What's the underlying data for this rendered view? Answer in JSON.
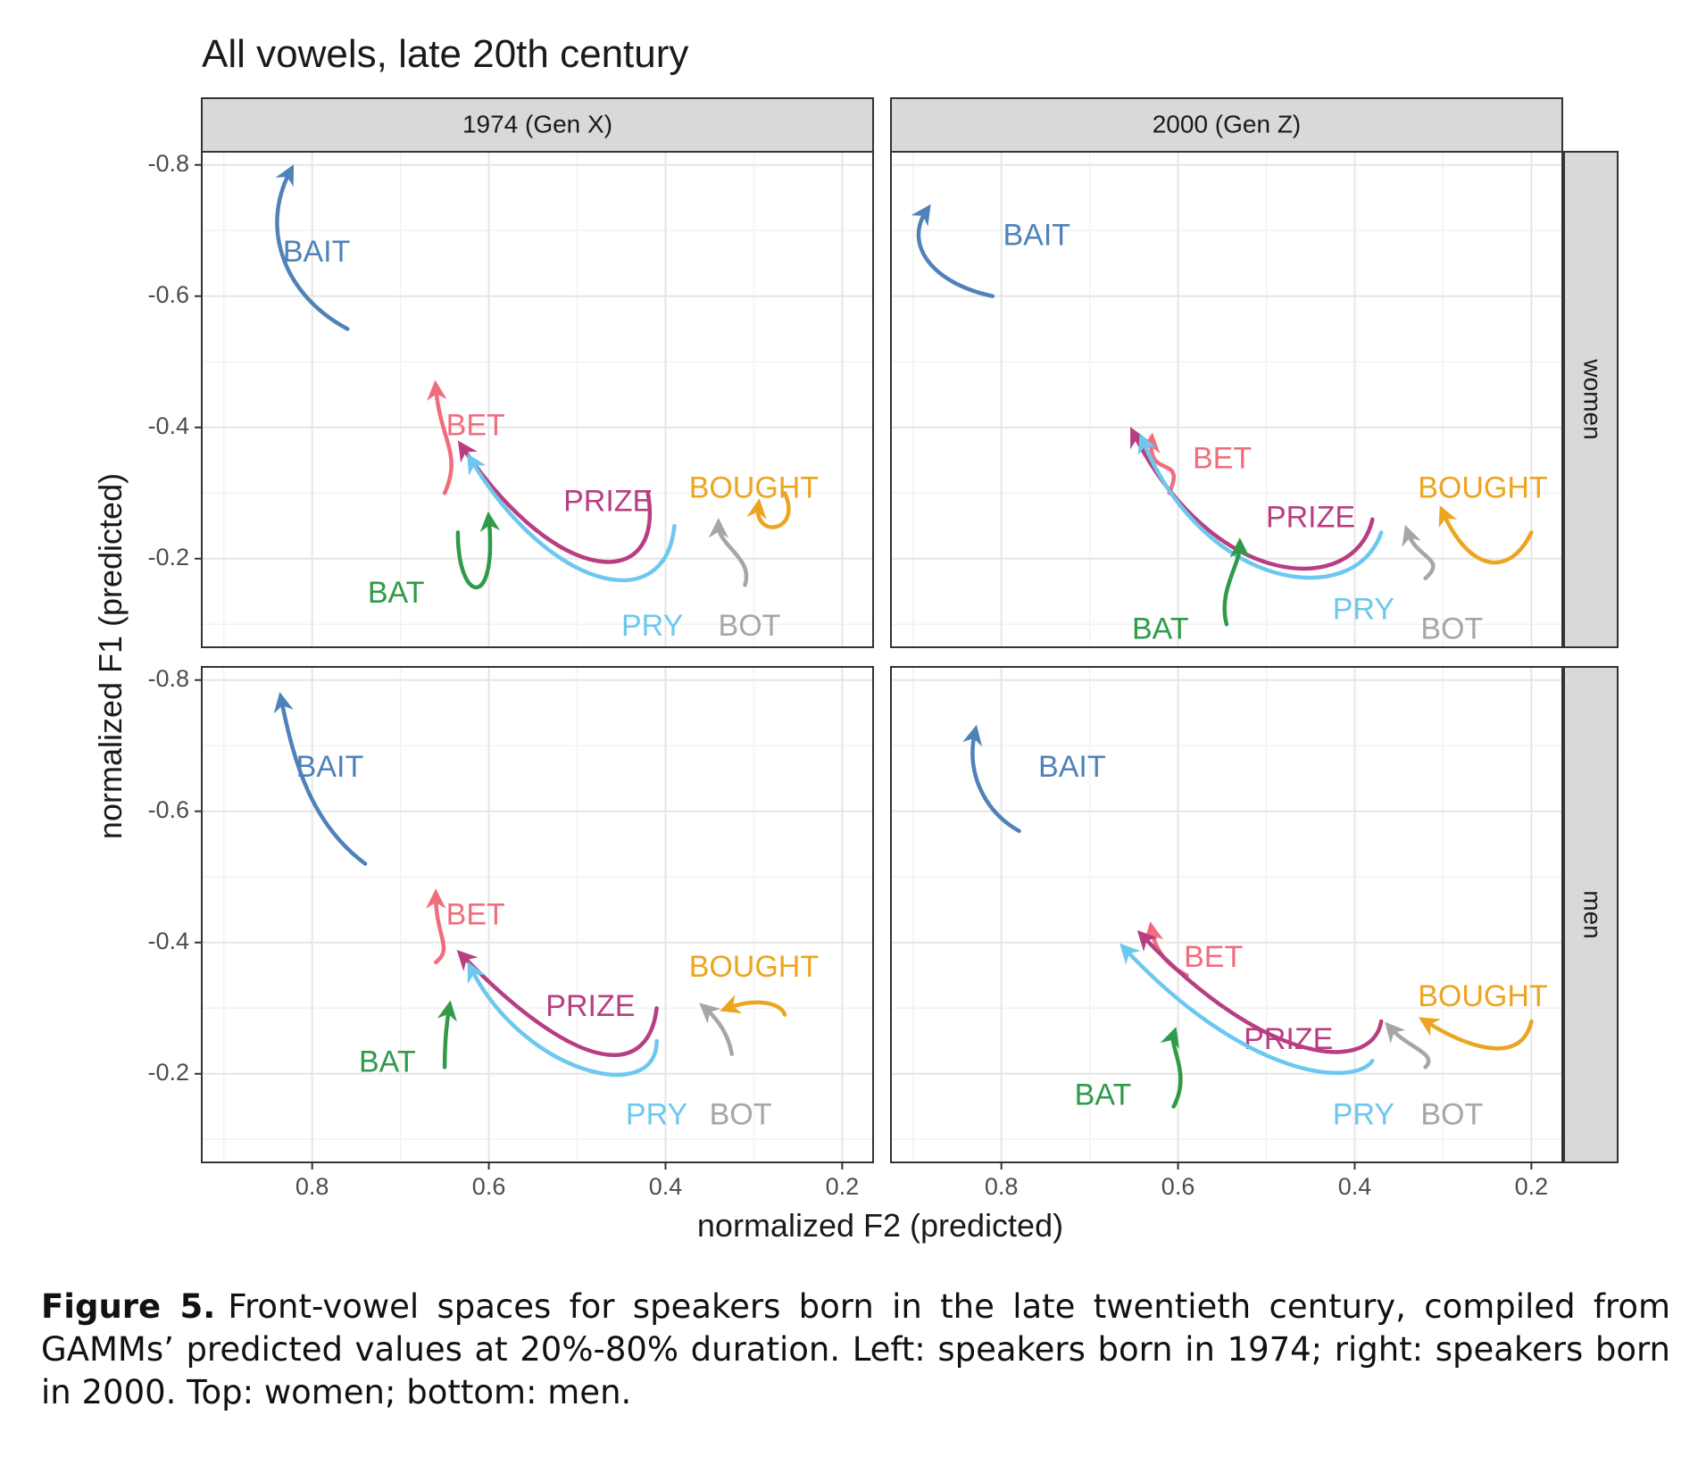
{
  "chart_data": {
    "type": "line",
    "title": "All vowels, late 20th century",
    "xlabel": "normalized F2 (predicted)",
    "ylabel": "normalized F1 (predicted)",
    "x_reversed": true,
    "y_reversed": true,
    "xlim": [
      0.925,
      0.165
    ],
    "ylim": [
      -0.82,
      -0.065
    ],
    "x_ticks": [
      0.8,
      0.6,
      0.4,
      0.2
    ],
    "x_tick_labels": [
      "0.8",
      "0.6",
      "0.4",
      "0.2"
    ],
    "y_ticks": [
      -0.8,
      -0.6,
      -0.4,
      -0.2
    ],
    "y_tick_labels": [
      "-0.8",
      "-0.6",
      "-0.4",
      "-0.2"
    ],
    "grid": true,
    "legend": "none",
    "colors": {
      "BAIT": "#4f82b8",
      "BET": "#f06d7d",
      "PRIZE": "#b83e82",
      "PRY": "#6cc8ee",
      "BAT": "#2f9a48",
      "BOT": "#a6a6a6",
      "BOUGHT": "#eba521"
    },
    "columns": [
      "1974 (Gen X)",
      "2000 (Gen Z)"
    ],
    "rows": [
      "women",
      "men"
    ],
    "panels": [
      {
        "col": 0,
        "row": 0,
        "series": [
          {
            "name": "BAIT",
            "points": [
              [
                0.76,
                -0.55
              ],
              [
                0.83,
                -0.6
              ],
              [
                0.86,
                -0.7
              ],
              [
                0.825,
                -0.79
              ]
            ],
            "label_at": [
              0.795,
              -0.665
            ]
          },
          {
            "name": "BET",
            "points": [
              [
                0.65,
                -0.3
              ],
              [
                0.63,
                -0.36
              ],
              [
                0.655,
                -0.38
              ],
              [
                0.66,
                -0.46
              ]
            ],
            "label_at": [
              0.615,
              -0.4
            ]
          },
          {
            "name": "PRIZE",
            "points": [
              [
                0.42,
                -0.3
              ],
              [
                0.4,
                -0.15
              ],
              [
                0.52,
                -0.15
              ],
              [
                0.63,
                -0.37
              ]
            ],
            "label_at": [
              0.465,
              -0.285
            ]
          },
          {
            "name": "PRY",
            "points": [
              [
                0.39,
                -0.25
              ],
              [
                0.4,
                -0.11
              ],
              [
                0.53,
                -0.15
              ],
              [
                0.62,
                -0.35
              ]
            ],
            "label_at": [
              0.415,
              -0.095
            ]
          },
          {
            "name": "BAT",
            "points": [
              [
                0.635,
                -0.24
              ],
              [
                0.635,
                -0.13
              ],
              [
                0.59,
                -0.12
              ],
              [
                0.6,
                -0.26
              ]
            ],
            "label_at": [
              0.705,
              -0.145
            ]
          },
          {
            "name": "BOT",
            "points": [
              [
                0.31,
                -0.16
              ],
              [
                0.3,
                -0.2
              ],
              [
                0.34,
                -0.22
              ],
              [
                0.34,
                -0.25
              ]
            ],
            "label_at": [
              0.305,
              -0.095
            ]
          },
          {
            "name": "BOUGHT",
            "points": [
              [
                0.265,
                -0.3
              ],
              [
                0.245,
                -0.24
              ],
              [
                0.3,
                -0.23
              ],
              [
                0.295,
                -0.28
              ]
            ],
            "label_at": [
              0.3,
              -0.305
            ]
          }
        ]
      },
      {
        "col": 1,
        "row": 0,
        "series": [
          {
            "name": "BAIT",
            "points": [
              [
                0.81,
                -0.6
              ],
              [
                0.88,
                -0.62
              ],
              [
                0.91,
                -0.68
              ],
              [
                0.885,
                -0.73
              ]
            ],
            "label_at": [
              0.76,
              -0.69
            ]
          },
          {
            "name": "BET",
            "points": [
              [
                0.61,
                -0.3
              ],
              [
                0.59,
                -0.36
              ],
              [
                0.635,
                -0.32
              ],
              [
                0.63,
                -0.38
              ]
            ],
            "label_at": [
              0.55,
              -0.35
            ]
          },
          {
            "name": "PRIZE",
            "points": [
              [
                0.38,
                -0.26
              ],
              [
                0.4,
                -0.14
              ],
              [
                0.56,
                -0.15
              ],
              [
                0.65,
                -0.39
              ]
            ],
            "label_at": [
              0.45,
              -0.26
            ]
          },
          {
            "name": "PRY",
            "points": [
              [
                0.37,
                -0.24
              ],
              [
                0.4,
                -0.12
              ],
              [
                0.57,
                -0.15
              ],
              [
                0.64,
                -0.38
              ]
            ],
            "label_at": [
              0.39,
              -0.12
            ]
          },
          {
            "name": "BAT",
            "points": [
              [
                0.545,
                -0.1
              ],
              [
                0.555,
                -0.15
              ],
              [
                0.53,
                -0.19
              ],
              [
                0.53,
                -0.22
              ]
            ],
            "label_at": [
              0.62,
              -0.09
            ]
          },
          {
            "name": "BOT",
            "points": [
              [
                0.32,
                -0.17
              ],
              [
                0.295,
                -0.2
              ],
              [
                0.33,
                -0.2
              ],
              [
                0.34,
                -0.24
              ]
            ],
            "label_at": [
              0.29,
              -0.09
            ]
          },
          {
            "name": "BOUGHT",
            "points": [
              [
                0.2,
                -0.24
              ],
              [
                0.225,
                -0.17
              ],
              [
                0.27,
                -0.18
              ],
              [
                0.3,
                -0.27
              ]
            ],
            "label_at": [
              0.255,
              -0.305
            ]
          }
        ]
      },
      {
        "col": 0,
        "row": 1,
        "series": [
          {
            "name": "BAIT",
            "points": [
              [
                0.74,
                -0.52
              ],
              [
                0.8,
                -0.58
              ],
              [
                0.82,
                -0.67
              ],
              [
                0.835,
                -0.77
              ]
            ],
            "label_at": [
              0.78,
              -0.665
            ]
          },
          {
            "name": "BET",
            "points": [
              [
                0.66,
                -0.37
              ],
              [
                0.64,
                -0.39
              ],
              [
                0.66,
                -0.41
              ],
              [
                0.66,
                -0.47
              ]
            ],
            "label_at": [
              0.615,
              -0.44
            ]
          },
          {
            "name": "PRIZE",
            "points": [
              [
                0.41,
                -0.3
              ],
              [
                0.42,
                -0.19
              ],
              [
                0.5,
                -0.2
              ],
              [
                0.63,
                -0.38
              ]
            ],
            "label_at": [
              0.485,
              -0.3
            ]
          },
          {
            "name": "PRY",
            "points": [
              [
                0.41,
                -0.25
              ],
              [
                0.41,
                -0.15
              ],
              [
                0.56,
                -0.2
              ],
              [
                0.62,
                -0.36
              ]
            ],
            "label_at": [
              0.41,
              -0.135
            ]
          },
          {
            "name": "BAT",
            "points": [
              [
                0.65,
                -0.21
              ],
              [
                0.65,
                -0.26
              ],
              [
                0.645,
                -0.3
              ]
            ],
            "label_at": [
              0.715,
              -0.215
            ]
          },
          {
            "name": "BOT",
            "points": [
              [
                0.325,
                -0.23
              ],
              [
                0.33,
                -0.27
              ],
              [
                0.355,
                -0.3
              ]
            ],
            "label_at": [
              0.315,
              -0.135
            ]
          },
          {
            "name": "BOUGHT",
            "points": [
              [
                0.265,
                -0.29
              ],
              [
                0.27,
                -0.31
              ],
              [
                0.3,
                -0.315
              ],
              [
                0.33,
                -0.3
              ]
            ],
            "label_at": [
              0.3,
              -0.36
            ]
          }
        ]
      },
      {
        "col": 1,
        "row": 1,
        "series": [
          {
            "name": "BAIT",
            "points": [
              [
                0.78,
                -0.57
              ],
              [
                0.82,
                -0.6
              ],
              [
                0.84,
                -0.66
              ],
              [
                0.83,
                -0.72
              ]
            ],
            "label_at": [
              0.72,
              -0.665
            ]
          },
          {
            "name": "BET",
            "points": [
              [
                0.59,
                -0.35
              ],
              [
                0.605,
                -0.36
              ],
              [
                0.625,
                -0.38
              ],
              [
                0.63,
                -0.42
              ]
            ],
            "label_at": [
              0.56,
              -0.375
            ]
          },
          {
            "name": "PRIZE",
            "points": [
              [
                0.37,
                -0.28
              ],
              [
                0.38,
                -0.2
              ],
              [
                0.5,
                -0.21
              ],
              [
                0.64,
                -0.41
              ]
            ],
            "label_at": [
              0.475,
              -0.25
            ]
          },
          {
            "name": "PRY",
            "points": [
              [
                0.38,
                -0.22
              ],
              [
                0.4,
                -0.18
              ],
              [
                0.52,
                -0.19
              ],
              [
                0.66,
                -0.39
              ]
            ],
            "label_at": [
              0.39,
              -0.135
            ]
          },
          {
            "name": "BAT",
            "points": [
              [
                0.605,
                -0.15
              ],
              [
                0.585,
                -0.2
              ],
              [
                0.61,
                -0.24
              ],
              [
                0.605,
                -0.26
              ]
            ],
            "label_at": [
              0.685,
              -0.165
            ]
          },
          {
            "name": "BOT",
            "points": [
              [
                0.32,
                -0.21
              ],
              [
                0.305,
                -0.23
              ],
              [
                0.34,
                -0.24
              ],
              [
                0.36,
                -0.27
              ]
            ],
            "label_at": [
              0.29,
              -0.135
            ]
          },
          {
            "name": "BOUGHT",
            "points": [
              [
                0.2,
                -0.28
              ],
              [
                0.21,
                -0.22
              ],
              [
                0.26,
                -0.23
              ],
              [
                0.32,
                -0.28
              ]
            ],
            "label_at": [
              0.255,
              -0.315
            ]
          }
        ]
      }
    ]
  },
  "caption": {
    "label": "Figure 5.",
    "text": "Front-vowel spaces for speakers born in the late twentieth century, compiled from GAMMs’ predicted values at 20%-80% duration. Left: speakers born in 1974; right: speakers born in 2000. Top: women; bottom: men."
  }
}
